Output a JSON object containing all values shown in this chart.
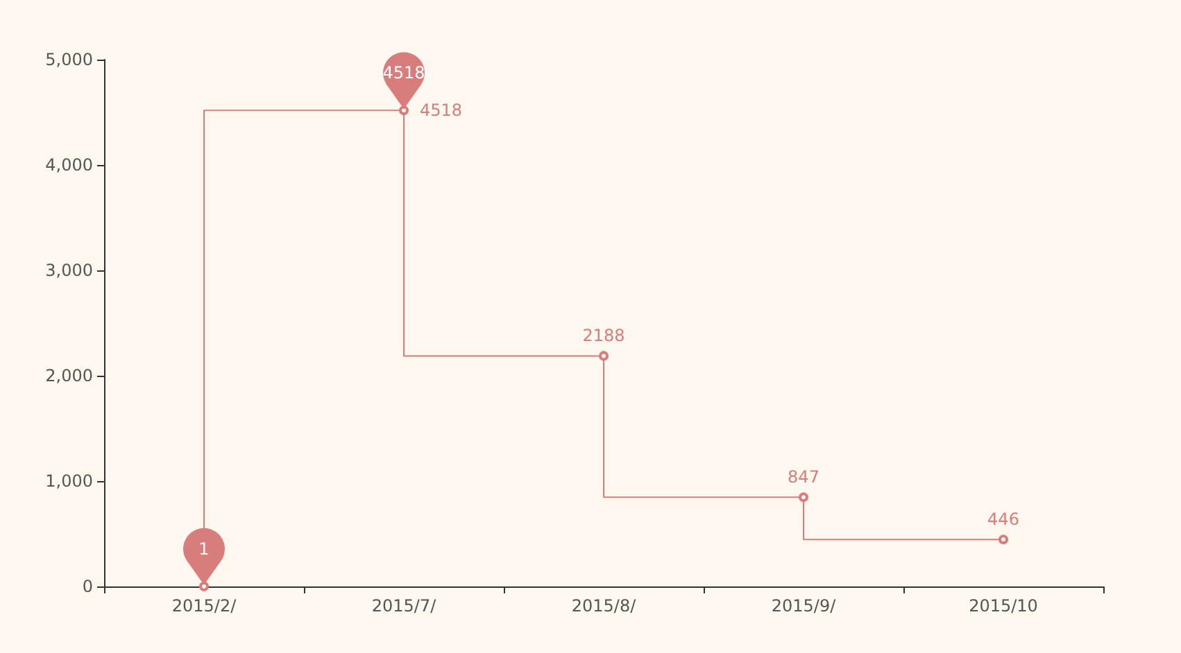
{
  "chart_data": {
    "type": "step",
    "categories": [
      "2015/2/",
      "2015/7/",
      "2015/8/",
      "2015/9/",
      "2015/10"
    ],
    "values": [
      1,
      4518,
      2188,
      847,
      446
    ],
    "color": "#d87c7c",
    "marker": "circle",
    "value_labels": [
      null,
      "4518",
      "2188",
      "847",
      "446"
    ],
    "annotations": [
      {
        "text": "4518",
        "x": "2015/7/",
        "y": 4518
      },
      {
        "text": "1",
        "x": "2015/2/",
        "y": 1
      }
    ],
    "ylim": [
      0,
      5000
    ],
    "yticks": [
      {
        "value": 0,
        "label": "0"
      },
      {
        "value": 1000,
        "label": "1,000"
      },
      {
        "value": 2000,
        "label": "2,000"
      },
      {
        "value": 3000,
        "label": "3,000"
      },
      {
        "value": 4000,
        "label": "4,000"
      },
      {
        "value": 5000,
        "label": "5,000"
      }
    ]
  }
}
